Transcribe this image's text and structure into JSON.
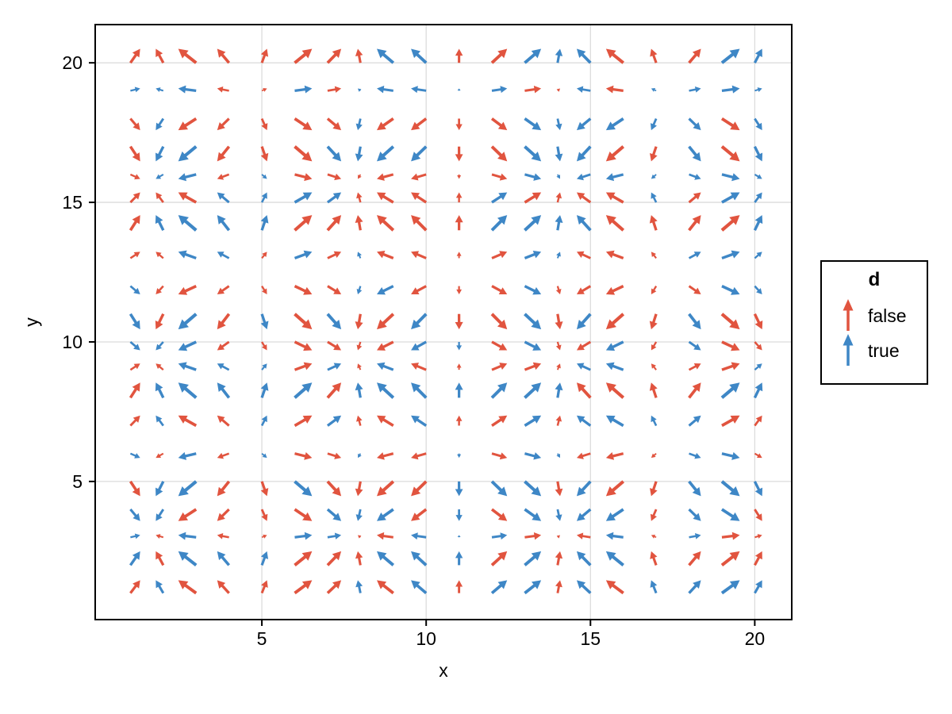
{
  "figure": {
    "background": "#ffffff",
    "xlabel": "x",
    "ylabel": "y",
    "x_ticks": [
      5,
      10,
      15,
      20
    ],
    "y_ticks": [
      5,
      10,
      15,
      20
    ],
    "grid_color": "#dcdcdc",
    "frame_color": "#000000",
    "tick_color": "#000000"
  },
  "legend": {
    "title": "d",
    "entries": [
      {
        "label": "false",
        "color": "#e1543f",
        "symbol": "up-arrow"
      },
      {
        "label": "true",
        "color": "#3e87c6",
        "symbol": "up-arrow"
      }
    ]
  },
  "chart_data": {
    "type": "quiver",
    "title": "",
    "xlabel": "x",
    "ylabel": "y",
    "grid": true,
    "legend_position": "right",
    "x_values": [
      1,
      2,
      3,
      4,
      5,
      6,
      7,
      8,
      9,
      10,
      11,
      12,
      13,
      14,
      15,
      16,
      17,
      18,
      19,
      20
    ],
    "y_values": [
      1,
      2,
      3,
      4,
      5,
      6,
      7,
      8,
      9,
      10,
      11,
      12,
      13,
      14,
      15,
      16,
      17,
      18,
      19,
      20
    ],
    "x_axis_lim": [
      -0.07,
      21.12
    ],
    "y_axis_lim": [
      0.05,
      21.37
    ],
    "u_by_x": [
      0.54,
      -0.416,
      -0.99,
      -0.654,
      0.284,
      0.96,
      0.754,
      -0.146,
      -0.911,
      -0.839,
      0.004,
      0.844,
      0.908,
      0.137,
      -0.76,
      -0.958,
      -0.275,
      0.66,
      0.989,
      0.408
    ],
    "v_by_y": [
      0.841,
      0.909,
      0.141,
      -0.757,
      -0.959,
      -0.279,
      0.657,
      0.989,
      0.412,
      -0.544,
      -1.0,
      -0.537,
      0.42,
      0.991,
      0.65,
      -0.288,
      -0.961,
      -0.751,
      0.15,
      0.913
    ],
    "d_encoding": {
      "R": "false",
      "B": "true"
    },
    "colors": {
      "false": "#e1543f",
      "true": "#3e87c6"
    },
    "d_rows_y1_to_y20": [
      "RBRRRRRBRBRBBRBRBBBB",
      "BRBBBRRRBBBRBRBBRRRR",
      "BRBRRBBRRBBBRRRBRBRR",
      "BBRRRRBBBRBRBBBBRBBR",
      "RBBRRBRRRRBBBRBRRBBB",
      "BRBRBRRBRRBRBBRRRBBR",
      "RBRRBRBRRBRRBRBBBBRR",
      "RBBBBBRBBBBBBBRRRRBB",
      "RRBBBRBRBRRRRRBBRRRB",
      "BBBRRRRRRBBRBRRBRBRR",
      "BRBRBRBRRBRRBRBRRBRR",
      "BRRRRRRBBRRRBRRRRRBB",
      "RRBBRBRBRRRRBBRRRBBB",
      "RBBBBRRRRRRBBBBRRRRB",
      "RRRBBBBRRRRBRRRRBRBB",
      "RBBRBRRRRRRRBBBBBBBB",
      "RBBRRRBBBBRRBBBRRBRB",
      "RBRRRRRBRRRRBBBBBBRB",
      "BBBRRBRBBBBBRRBRBBBB",
      "RRRRRRRRBBRRBBBRRRBB"
    ],
    "vector_scale": 0.55
  }
}
